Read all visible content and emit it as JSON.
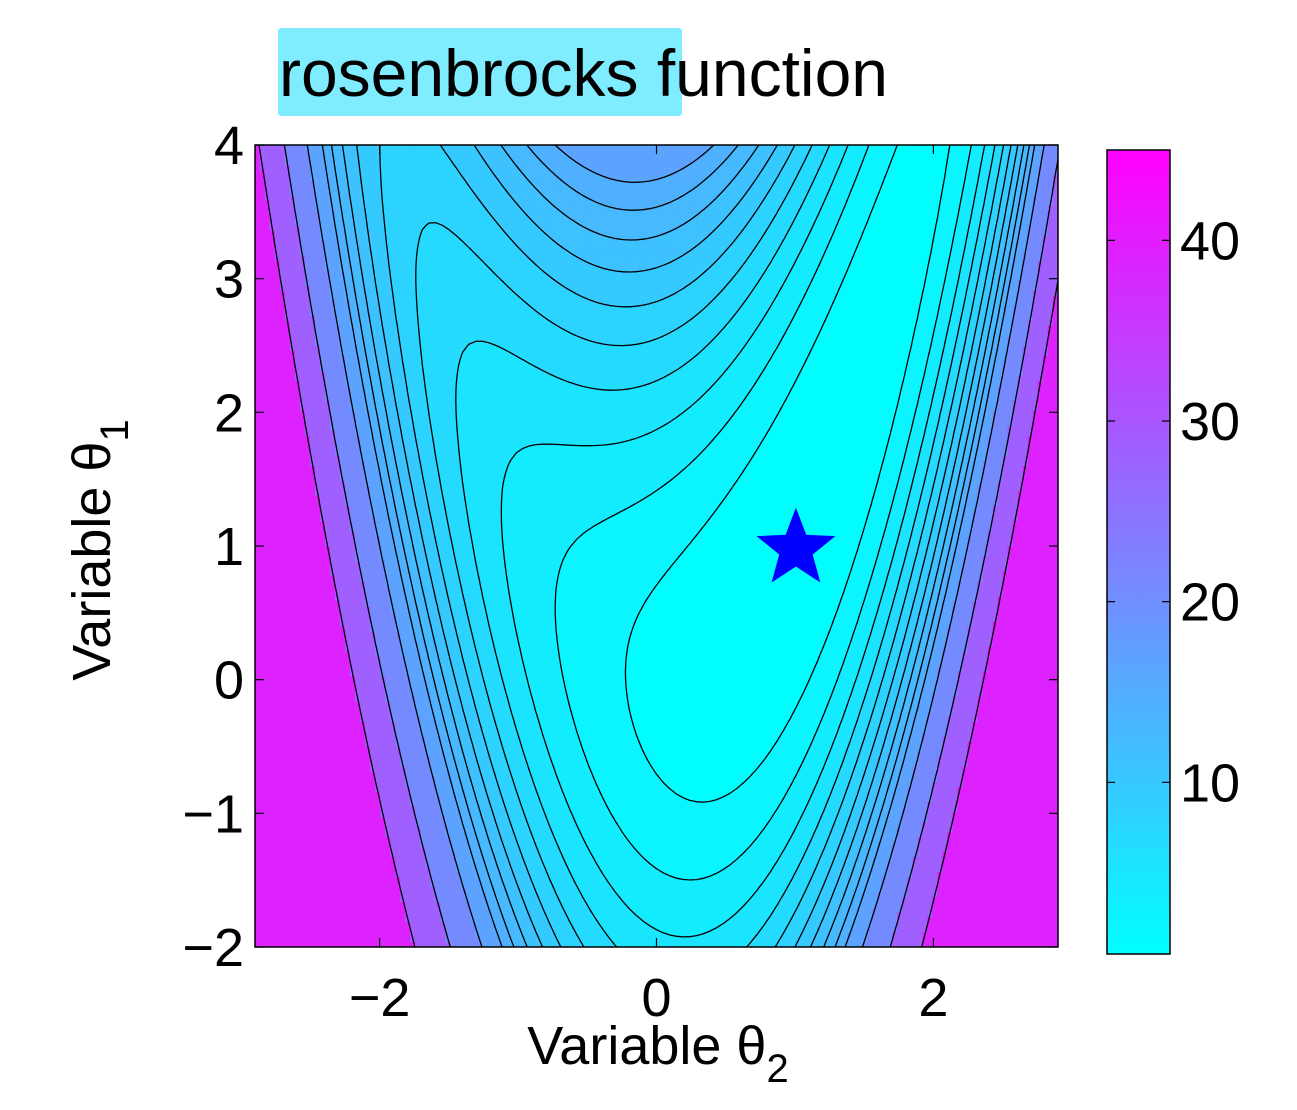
{
  "chart_data": {
    "type": "contour",
    "title": "rosenbrocks function",
    "title_highlight": "rosenbrock",
    "title_rest": "s function",
    "title_highlight_color": "#80ecff",
    "xlabel": {
      "text": "Variable θ",
      "sub": "2"
    },
    "ylabel": {
      "text": "Variable θ",
      "sub": "1"
    },
    "xlim": [
      -2.9,
      2.9
    ],
    "ylim": [
      -2,
      4
    ],
    "xticks": [
      -2,
      0,
      2
    ],
    "yticks": [
      -2,
      -1,
      0,
      1,
      2,
      3,
      4
    ],
    "xtick_labels": [
      "−2",
      "0",
      "2"
    ],
    "ytick_labels": [
      "−2",
      "−1",
      "0",
      "1",
      "2",
      "3",
      "4"
    ],
    "contour_levels": [
      0,
      1.5,
      3,
      4.5,
      6,
      7.5,
      9,
      10.5,
      12,
      13.5,
      15,
      18,
      24,
      33
    ],
    "colormap": [
      "#00ffff",
      "#ff00ff"
    ],
    "colorbar": {
      "range": [
        0.5,
        45
      ],
      "ticks": [
        10,
        20,
        30,
        40
      ],
      "tick_labels": [
        "10",
        "20",
        "30",
        "40"
      ]
    },
    "marker": {
      "shape": "star",
      "x": 1,
      "y": 1,
      "color": "#0000ff"
    },
    "grid": false
  }
}
